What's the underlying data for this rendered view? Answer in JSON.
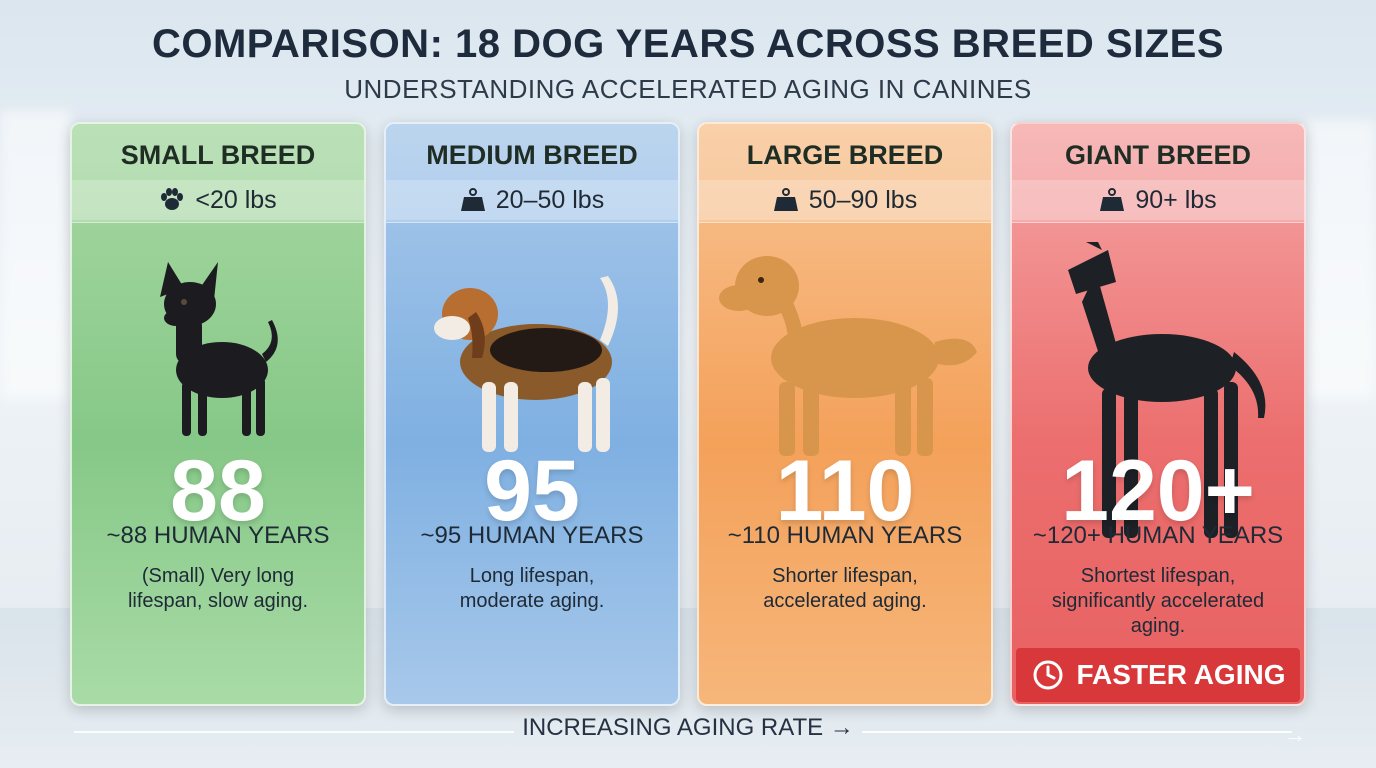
{
  "header": {
    "title": "COMPARISON: 18 DOG YEARS ACROSS BREED SIZES",
    "subtitle": "UNDERSTANDING ACCELERATED AGING IN CANINES"
  },
  "cards": [
    {
      "breed": "SMALL BREED",
      "weight": "<20 lbs",
      "weight_icon": "paw-icon",
      "dog": "chihuahua",
      "number": "88",
      "human_years": "~88 HUMAN YEARS",
      "desc_line1": "(Small) Very long",
      "desc_line2": "lifespan, slow aging.",
      "color": "#86c887"
    },
    {
      "breed": "MEDIUM BREED",
      "weight": "20–50 lbs",
      "weight_icon": "scale-icon",
      "dog": "beagle",
      "number": "95",
      "human_years": "~95 HUMAN YEARS",
      "desc_line1": "Long lifespan,",
      "desc_line2": "moderate aging.",
      "color": "#7fb0e2"
    },
    {
      "breed": "LARGE BREED",
      "weight": "50–90 lbs",
      "weight_icon": "scale-icon",
      "dog": "golden-retriever",
      "number": "110",
      "human_years": "~110 HUMAN YEARS",
      "desc_line1": "Shorter lifespan,",
      "desc_line2": "accelerated aging.",
      "color": "#f4a15a"
    },
    {
      "breed": "GIANT BREED",
      "weight": "90+ lbs",
      "weight_icon": "scale-icon",
      "dog": "great-dane",
      "number": "120+",
      "human_years": "~120+ HUMAN YEARS",
      "desc_line1": "Shortest lifespan,",
      "desc_line2": "significantly accelerated aging.",
      "color": "#e86262"
    }
  ],
  "badge": {
    "label": "FASTER AGING",
    "icon": "clock-icon",
    "color": "#d8383a"
  },
  "axis": {
    "label": "INCREASING AGING RATE →"
  }
}
